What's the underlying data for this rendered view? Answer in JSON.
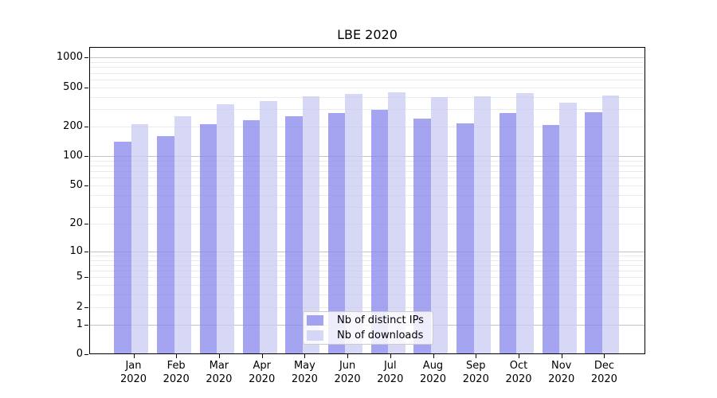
{
  "chart_data": {
    "type": "bar",
    "title": "LBE 2020",
    "y_scale": "log10(1+y)",
    "grid": true,
    "legend_position": "bottom-center-inside",
    "categories": [
      "Jan",
      "Feb",
      "Mar",
      "Apr",
      "May",
      "Jun",
      "Jul",
      "Aug",
      "Sep",
      "Oct",
      "Nov",
      "Dec"
    ],
    "category_year": "2020",
    "series": [
      {
        "name": "Nb of distinct IPs",
        "color": "rgba(134,134,236,0.75)",
        "values": [
          140,
          159,
          211,
          233,
          254,
          272,
          296,
          240,
          216,
          272,
          208,
          279
        ]
      },
      {
        "name": "Nb of downloads",
        "color": "rgba(202,202,243,0.75)",
        "values": [
          211,
          255,
          338,
          362,
          406,
          430,
          446,
          399,
          406,
          435,
          348,
          414
        ]
      }
    ],
    "y_ticks": [
      1000,
      500,
      200,
      100,
      50,
      20,
      10,
      5,
      2,
      1,
      0
    ],
    "ylim_top_value": 1277
  }
}
